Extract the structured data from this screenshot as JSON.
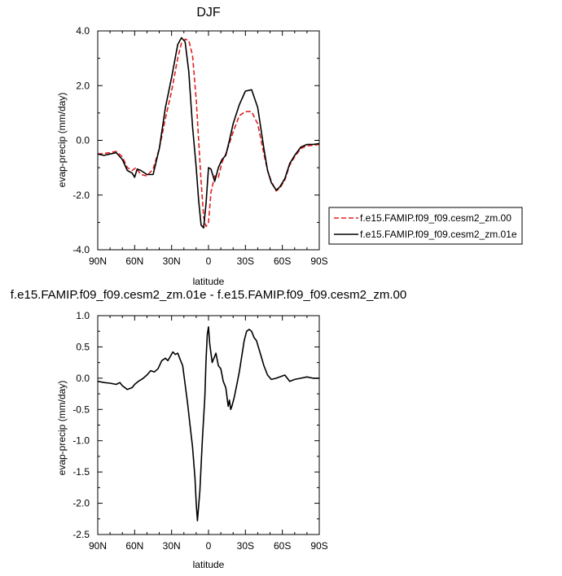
{
  "chart_data": [
    {
      "type": "line",
      "title": "DJF",
      "xlabel": "latitude",
      "ylabel": "evap-precip (mm/day)",
      "x_unit": "degrees latitude (positive = N, negative = S)",
      "xlim": [
        90,
        -90
      ],
      "ylim": [
        -4.0,
        4.0
      ],
      "x_ticks": [
        90,
        60,
        30,
        0,
        -30,
        -60,
        -90
      ],
      "x_tick_labels": [
        "90N",
        "60N",
        "30N",
        "0",
        "30S",
        "60S",
        "90S"
      ],
      "y_ticks": [
        4,
        2,
        0,
        -2,
        -4
      ],
      "y_tick_labels": [
        "4.0",
        "2.0",
        "0.0",
        "-2.0",
        "-4.0"
      ],
      "legend_position": "right",
      "series": [
        {
          "name": "f.e15.FAMIP.f09_f09.cesm2_zm.00",
          "color": "#e02020",
          "dash": "dashed",
          "x": [
            90,
            85,
            80,
            75,
            70,
            66,
            62,
            59,
            55,
            50,
            45,
            40,
            35,
            30,
            25,
            22,
            19,
            16,
            13,
            10,
            8,
            6,
            4,
            2,
            0,
            -2,
            -5,
            -8,
            -11,
            -14,
            -17,
            -20,
            -25,
            -30,
            -35,
            -40,
            -45,
            -48,
            -51,
            -55,
            -58,
            -62,
            -66,
            -70,
            -75,
            -80,
            -85,
            -90
          ],
          "y": [
            -0.5,
            -0.48,
            -0.45,
            -0.4,
            -0.6,
            -1.0,
            -1.1,
            -1.0,
            -1.25,
            -1.3,
            -1.05,
            -0.3,
            0.8,
            1.8,
            3.0,
            3.55,
            3.7,
            3.65,
            3.1,
            1.5,
            0.0,
            -1.5,
            -2.8,
            -3.15,
            -3.0,
            -1.9,
            -1.3,
            -1.35,
            -0.8,
            -0.5,
            -0.1,
            0.3,
            0.9,
            1.05,
            1.05,
            0.6,
            -0.5,
            -1.1,
            -1.5,
            -1.85,
            -1.75,
            -1.45,
            -0.9,
            -0.6,
            -0.3,
            -0.2,
            -0.18,
            -0.15
          ]
        },
        {
          "name": "f.e15.FAMIP.f09_f09.cesm2_zm.01e",
          "color": "#000000",
          "dash": "solid",
          "x": [
            90,
            85,
            80,
            75,
            70,
            66,
            62,
            60,
            58,
            55,
            50,
            45,
            40,
            35,
            30,
            25,
            22,
            19,
            16,
            13,
            10,
            8,
            6,
            4,
            2,
            0,
            -2,
            -5,
            -8,
            -11,
            -14,
            -17,
            -20,
            -25,
            -30,
            -35,
            -40,
            -45,
            -48,
            -51,
            -55,
            -58,
            -62,
            -66,
            -70,
            -75,
            -80,
            -85,
            -90
          ],
          "y": [
            -0.5,
            -0.55,
            -0.5,
            -0.45,
            -0.7,
            -1.1,
            -1.2,
            -1.35,
            -1.05,
            -1.1,
            -1.25,
            -1.25,
            -0.3,
            1.2,
            2.3,
            3.5,
            3.75,
            3.6,
            2.5,
            0.5,
            -1.0,
            -2.2,
            -3.1,
            -3.2,
            -2.3,
            -1.0,
            -1.05,
            -1.5,
            -1.0,
            -0.7,
            -0.55,
            0.0,
            0.6,
            1.3,
            1.8,
            1.85,
            1.2,
            -0.3,
            -1.1,
            -1.55,
            -1.82,
            -1.7,
            -1.4,
            -0.85,
            -0.55,
            -0.25,
            -0.15,
            -0.15,
            -0.12
          ]
        }
      ]
    },
    {
      "type": "line",
      "title": "f.e15.FAMIP.f09_f09.cesm2_zm.01e - f.e15.FAMIP.f09_f09.cesm2_zm.00",
      "xlabel": "latitude",
      "ylabel": "evap-precip (mm/day)",
      "x_unit": "degrees latitude (positive = N, negative = S)",
      "xlim": [
        90,
        -90
      ],
      "ylim": [
        -2.5,
        1.0
      ],
      "x_ticks": [
        90,
        60,
        30,
        0,
        -30,
        -60,
        -90
      ],
      "x_tick_labels": [
        "90N",
        "60N",
        "30N",
        "0",
        "30S",
        "60S",
        "90S"
      ],
      "y_ticks": [
        1.0,
        0.5,
        0.0,
        -0.5,
        -1.0,
        -1.5,
        -2.0,
        -2.5
      ],
      "y_tick_labels": [
        "1.0",
        "0.5",
        "0.0",
        "-0.5",
        "-1.0",
        "-1.5",
        "-2.0",
        "-2.5"
      ],
      "series": [
        {
          "color": "#000000",
          "dash": "solid",
          "x": [
            90,
            85,
            80,
            75,
            72,
            70,
            66,
            62,
            60,
            57,
            53,
            50,
            47,
            44,
            41,
            38,
            35,
            33,
            31,
            29,
            27,
            25,
            23,
            21,
            19,
            17,
            15,
            13,
            11,
            10,
            9,
            7,
            5,
            3,
            2,
            1,
            0,
            -1,
            -3,
            -5,
            -6,
            -8,
            -10,
            -12,
            -14,
            -16,
            -17,
            -18,
            -19,
            -21,
            -23,
            -25,
            -27,
            -29,
            -31,
            -33,
            -35,
            -37,
            -39,
            -42,
            -45,
            -48,
            -51,
            -55,
            -58,
            -62,
            -66,
            -70,
            -75,
            -80,
            -85,
            -90
          ],
          "y": [
            -0.05,
            -0.07,
            -0.08,
            -0.1,
            -0.07,
            -0.12,
            -0.18,
            -0.15,
            -0.1,
            -0.05,
            0.0,
            0.05,
            0.12,
            0.1,
            0.15,
            0.28,
            0.32,
            0.28,
            0.35,
            0.42,
            0.38,
            0.4,
            0.3,
            0.2,
            -0.1,
            -0.4,
            -0.75,
            -1.1,
            -1.6,
            -2.0,
            -2.28,
            -1.8,
            -1.0,
            -0.3,
            0.3,
            0.7,
            0.82,
            0.55,
            0.25,
            0.35,
            0.4,
            0.2,
            0.15,
            -0.05,
            -0.15,
            -0.45,
            -0.35,
            -0.5,
            -0.45,
            -0.3,
            -0.1,
            0.1,
            0.35,
            0.6,
            0.75,
            0.78,
            0.75,
            0.65,
            0.6,
            0.4,
            0.2,
            0.05,
            -0.02,
            0.0,
            0.02,
            0.05,
            -0.05,
            -0.02,
            0.0,
            0.02,
            0.0,
            0.0
          ]
        }
      ]
    }
  ]
}
